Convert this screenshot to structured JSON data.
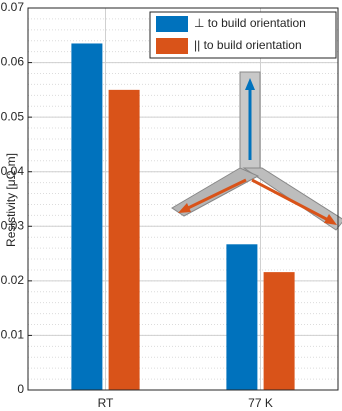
{
  "chart_data": {
    "type": "bar",
    "y_label": "Resistivity [μΩ·m]",
    "categories": [
      "RT",
      "77 K"
    ],
    "series": [
      {
        "name": "⊥ to build orientation",
        "color": "#0072bd",
        "values": [
          0.0635,
          0.0267
        ]
      },
      {
        "name": "|| to build orientation",
        "color": "#d95319",
        "values": [
          0.055,
          0.0216
        ]
      }
    ],
    "ylim": [
      0,
      0.07
    ],
    "yticks": [
      0,
      0.01,
      0.02,
      0.03,
      0.04,
      0.05,
      0.06,
      0.07
    ],
    "grid": true,
    "legend": "upper right"
  }
}
